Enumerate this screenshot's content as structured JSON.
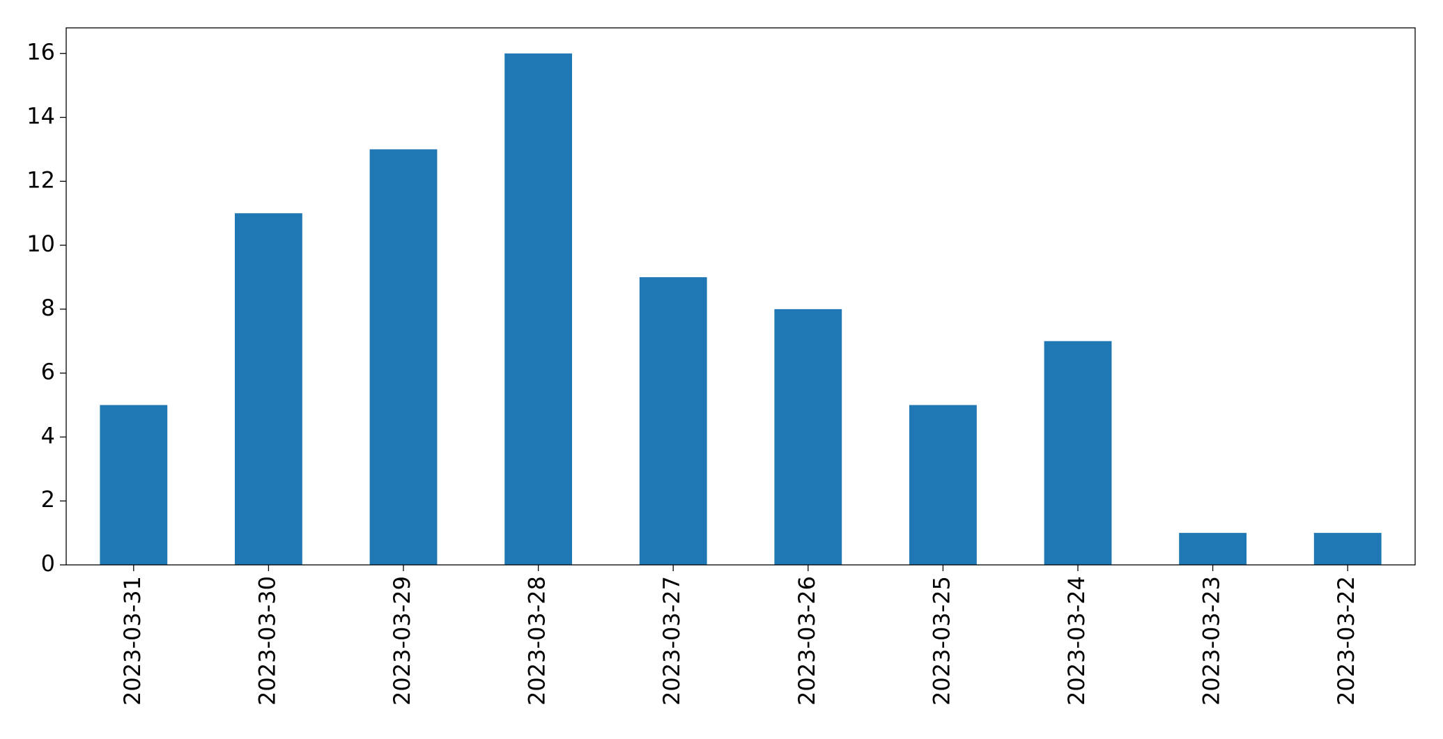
{
  "chart_data": {
    "type": "bar",
    "categories": [
      "2023-03-31",
      "2023-03-30",
      "2023-03-29",
      "2023-03-28",
      "2023-03-27",
      "2023-03-26",
      "2023-03-25",
      "2023-03-24",
      "2023-03-23",
      "2023-03-22"
    ],
    "values": [
      5,
      11,
      13,
      16,
      9,
      8,
      5,
      7,
      1,
      1
    ],
    "color": "#1f77b4",
    "ylim": [
      0,
      16.8
    ],
    "yticks": [
      0,
      2,
      4,
      6,
      8,
      10,
      12,
      14,
      16
    ],
    "grid": false
  }
}
